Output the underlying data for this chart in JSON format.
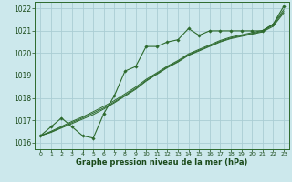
{
  "xlabel": "Graphe pression niveau de la mer (hPa)",
  "background_color": "#cce8ec",
  "grid_color": "#aacdd4",
  "line_color": "#2d6a2d",
  "text_color": "#1a4a1a",
  "xlim": [
    -0.5,
    23.5
  ],
  "ylim": [
    1015.7,
    1022.3
  ],
  "yticks": [
    1016,
    1017,
    1018,
    1019,
    1020,
    1021,
    1022
  ],
  "xticks": [
    0,
    1,
    2,
    3,
    4,
    5,
    6,
    7,
    8,
    9,
    10,
    11,
    12,
    13,
    14,
    15,
    16,
    17,
    18,
    19,
    20,
    21,
    22,
    23
  ],
  "main_x": [
    0,
    1,
    2,
    3,
    4,
    5,
    6,
    7,
    8,
    9,
    10,
    11,
    12,
    13,
    14,
    15,
    16,
    17,
    18,
    19,
    20,
    21,
    22,
    23
  ],
  "main_y": [
    1016.3,
    1016.7,
    1017.1,
    1016.7,
    1016.3,
    1016.2,
    1017.3,
    1018.1,
    1019.2,
    1019.4,
    1020.3,
    1020.3,
    1020.5,
    1020.6,
    1021.1,
    1020.8,
    1021.0,
    1021.0,
    1021.0,
    1021.0,
    1021.0,
    1021.0,
    1021.3,
    1022.1
  ],
  "smooth1_y": [
    1016.3,
    1016.45,
    1016.65,
    1016.85,
    1017.05,
    1017.25,
    1017.5,
    1017.78,
    1018.08,
    1018.38,
    1018.75,
    1019.05,
    1019.35,
    1019.6,
    1019.9,
    1020.1,
    1020.3,
    1020.5,
    1020.65,
    1020.75,
    1020.85,
    1020.95,
    1021.2,
    1021.8
  ],
  "smooth2_y": [
    1016.3,
    1016.47,
    1016.68,
    1016.9,
    1017.1,
    1017.32,
    1017.55,
    1017.82,
    1018.12,
    1018.42,
    1018.78,
    1019.08,
    1019.38,
    1019.63,
    1019.93,
    1020.13,
    1020.33,
    1020.53,
    1020.68,
    1020.78,
    1020.88,
    1020.98,
    1021.25,
    1021.87
  ],
  "smooth3_y": [
    1016.3,
    1016.5,
    1016.72,
    1016.95,
    1017.15,
    1017.38,
    1017.62,
    1017.88,
    1018.18,
    1018.48,
    1018.83,
    1019.12,
    1019.42,
    1019.67,
    1019.97,
    1020.17,
    1020.37,
    1020.57,
    1020.72,
    1020.82,
    1020.92,
    1021.02,
    1021.3,
    1021.95
  ]
}
